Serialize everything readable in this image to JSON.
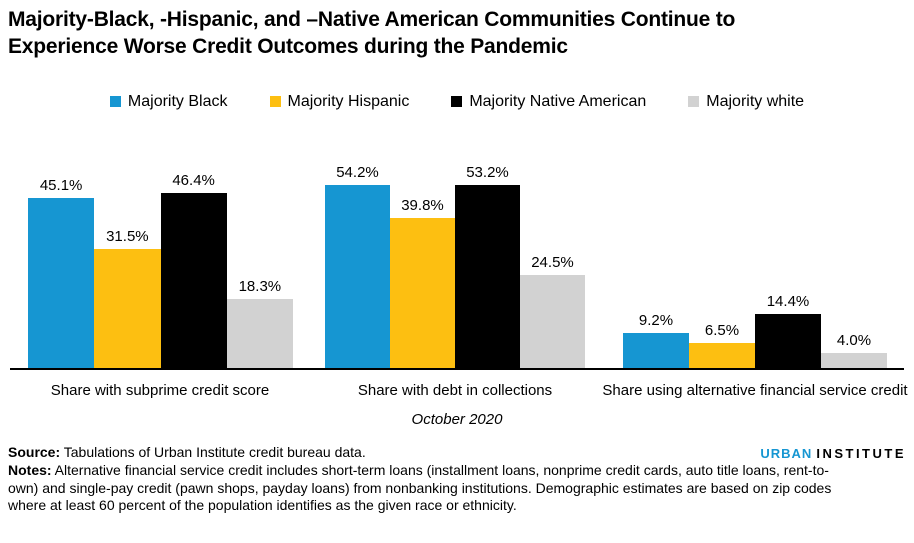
{
  "title": "Majority-Black, -Hispanic, and –Native American Communities Continue to Experience Worse Credit Outcomes during the Pandemic",
  "colors": {
    "blue": "#1696d2",
    "yellow": "#fdbf11",
    "black": "#000000",
    "gray": "#d2d2d2",
    "axis": "#000000"
  },
  "chart_data": {
    "type": "bar",
    "categories": [
      "Share with subprime credit score",
      "Share with debt in collections",
      "Share using alternative financial service credit"
    ],
    "series": [
      {
        "name": "Majority Black",
        "color": "#1696d2",
        "values": [
          45.1,
          54.2,
          9.2
        ]
      },
      {
        "name": "Majority Hispanic",
        "color": "#fdbf11",
        "values": [
          31.5,
          39.8,
          6.5
        ]
      },
      {
        "name": "Majority Native American",
        "color": "#000000",
        "values": [
          46.4,
          53.2,
          14.4
        ]
      },
      {
        "name": "Majority white",
        "color": "#d2d2d2",
        "values": [
          18.3,
          24.5,
          4.0
        ]
      }
    ],
    "value_labels": [
      [
        "45.1%",
        "54.2%",
        "9.2%"
      ],
      [
        "31.5%",
        "39.8%",
        "6.5%"
      ],
      [
        "46.4%",
        "53.2%",
        "14.4%"
      ],
      [
        "18.3%",
        "24.5%",
        "4.0%"
      ]
    ],
    "title": "Majority-Black, -Hispanic, and –Native American Communities Continue to Experience Worse Credit Outcomes during the Pandemic",
    "xlabel": "October 2020",
    "ylabel": "",
    "ylim": [
      0,
      58
    ],
    "grid": false,
    "legend_position": "top",
    "bar_gap_within_group": 0
  },
  "footer": {
    "logo_urban": "URBAN",
    "logo_institute": "INSTITUTE",
    "source_label": "Source:",
    "source_text": " Tabulations of Urban Institute credit bureau data.",
    "notes_label": "Notes:",
    "notes_text": " Alternative financial service credit includes short-term loans (installment loans, nonprime credit cards, auto title loans, rent-to-own) and single-pay credit (pawn shops, payday loans) from nonbanking institutions. Demographic estimates are based on zip codes where at least 60 percent of the population identifies as the given race or ethnicity."
  }
}
